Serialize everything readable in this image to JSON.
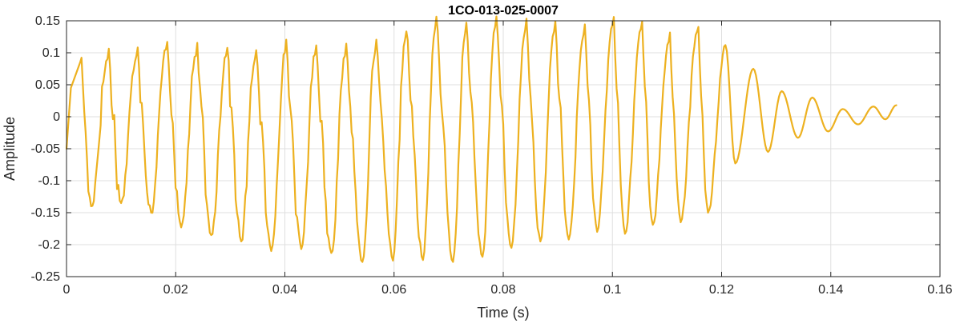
{
  "chart_data": {
    "type": "line",
    "title": "1CO-013-025-0007",
    "xlabel": "Time (s)",
    "ylabel": "Amplitude",
    "xlim": [
      0,
      0.16
    ],
    "ylim": [
      -0.25,
      0.15
    ],
    "xticks": [
      0,
      0.02,
      0.04,
      0.06,
      0.08,
      0.1,
      0.12,
      0.14,
      0.16
    ],
    "yticks": [
      -0.25,
      -0.2,
      -0.15,
      -0.1,
      -0.05,
      0,
      0.05,
      0.1,
      0.15
    ],
    "xtick_labels": [
      "0",
      "0.02",
      "0.04",
      "0.06",
      "0.08",
      "0.1",
      "0.12",
      "0.14",
      "0.16"
    ],
    "ytick_labels": [
      "-0.25",
      "-0.2",
      "-0.15",
      "-0.1",
      "-0.05",
      "0",
      "0.05",
      "0.1",
      "0.15"
    ],
    "grid": true,
    "box": true,
    "line_color": "#EDB120",
    "series": [
      {
        "x_start": 0,
        "x_end": 0.152,
        "minima": [
          {
            "t": 0.0045,
            "v": -0.14
          },
          {
            "t": 0.01,
            "v": -0.135
          },
          {
            "t": 0.0155,
            "v": -0.15
          },
          {
            "t": 0.021,
            "v": -0.173
          },
          {
            "t": 0.0265,
            "v": -0.185
          },
          {
            "t": 0.032,
            "v": -0.195
          },
          {
            "t": 0.0375,
            "v": -0.21
          },
          {
            "t": 0.043,
            "v": -0.207
          },
          {
            "t": 0.0485,
            "v": -0.213
          },
          {
            "t": 0.0542,
            "v": -0.227
          },
          {
            "t": 0.0598,
            "v": -0.225
          },
          {
            "t": 0.0653,
            "v": -0.224
          },
          {
            "t": 0.0708,
            "v": -0.227
          },
          {
            "t": 0.0762,
            "v": -0.219
          },
          {
            "t": 0.0815,
            "v": -0.205
          },
          {
            "t": 0.0868,
            "v": -0.195
          },
          {
            "t": 0.092,
            "v": -0.192
          },
          {
            "t": 0.0972,
            "v": -0.18
          },
          {
            "t": 0.1023,
            "v": -0.183
          },
          {
            "t": 0.1074,
            "v": -0.169
          },
          {
            "t": 0.1125,
            "v": -0.165
          },
          {
            "t": 0.1175,
            "v": -0.15
          },
          {
            "t": 0.1225,
            "v": -0.073
          },
          {
            "t": 0.1285,
            "v": -0.055
          },
          {
            "t": 0.134,
            "v": -0.033
          },
          {
            "t": 0.1395,
            "v": -0.023
          },
          {
            "t": 0.145,
            "v": -0.012
          },
          {
            "t": 0.15,
            "v": -0.004
          }
        ],
        "maxima": [
          {
            "t": 0.0025,
            "v": 0.085
          },
          {
            "t": 0.0075,
            "v": 0.09
          },
          {
            "t": 0.0128,
            "v": 0.095
          },
          {
            "t": 0.0182,
            "v": 0.105
          },
          {
            "t": 0.0237,
            "v": 0.095
          },
          {
            "t": 0.0292,
            "v": 0.095
          },
          {
            "t": 0.0345,
            "v": 0.09
          },
          {
            "t": 0.04,
            "v": 0.1
          },
          {
            "t": 0.0455,
            "v": 0.097
          },
          {
            "t": 0.051,
            "v": 0.095
          },
          {
            "t": 0.0565,
            "v": 0.1
          },
          {
            "t": 0.062,
            "v": 0.12
          },
          {
            "t": 0.0675,
            "v": 0.137
          },
          {
            "t": 0.073,
            "v": 0.13
          },
          {
            "t": 0.0785,
            "v": 0.14
          },
          {
            "t": 0.084,
            "v": 0.135
          },
          {
            "t": 0.0893,
            "v": 0.133
          },
          {
            "t": 0.0947,
            "v": 0.128
          },
          {
            "t": 0.1,
            "v": 0.143
          },
          {
            "t": 0.1052,
            "v": 0.137
          },
          {
            "t": 0.1103,
            "v": 0.117
          },
          {
            "t": 0.1155,
            "v": 0.133
          },
          {
            "t": 0.1207,
            "v": 0.112
          },
          {
            "t": 0.1258,
            "v": 0.075
          },
          {
            "t": 0.131,
            "v": 0.04
          },
          {
            "t": 0.1366,
            "v": 0.03
          },
          {
            "t": 0.1422,
            "v": 0.012
          },
          {
            "t": 0.1478,
            "v": 0.016
          },
          {
            "t": 0.152,
            "v": 0.018
          }
        ]
      }
    ]
  }
}
